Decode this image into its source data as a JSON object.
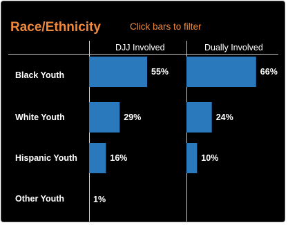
{
  "header": {
    "title": "Race/Ethnicity",
    "hint": "Click bars to filter"
  },
  "colors": {
    "background": "#000000",
    "accent": "#f0883a",
    "bar": "#2a79bd",
    "text": "#ffffff"
  },
  "chart_data": {
    "type": "bar",
    "orientation": "horizontal",
    "title": "Race/Ethnicity",
    "categories": [
      "Black Youth",
      "White Youth",
      "Hispanic Youth",
      "Other Youth"
    ],
    "series": [
      {
        "name": "DJJ Involved",
        "values": [
          55,
          29,
          16,
          1
        ],
        "labels": [
          "55%",
          "29%",
          "16%",
          "1%"
        ]
      },
      {
        "name": "Dually Involved",
        "values": [
          66,
          24,
          10,
          0
        ],
        "labels": [
          "66%",
          "24%",
          "10%",
          ""
        ]
      }
    ],
    "unit": "%",
    "xlim": [
      0,
      100
    ],
    "grid": false,
    "legend": "none"
  }
}
